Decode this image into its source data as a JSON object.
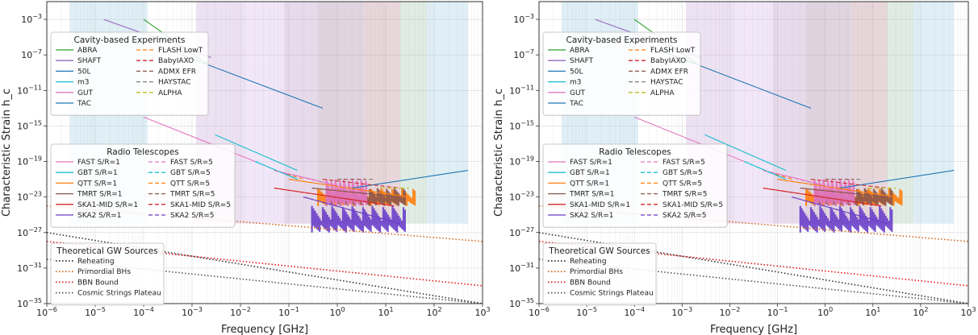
{
  "chart_data": {
    "type": "line",
    "figure_title": "",
    "panels": [
      {
        "id": "left",
        "title": ""
      },
      {
        "id": "right",
        "title": ""
      }
    ],
    "xlabel": "Frequency [GHz]",
    "ylabel": "Characteristic Strain h_c",
    "xscale": "log",
    "yscale": "log",
    "xlim": [
      1e-06,
      1000.0
    ],
    "ylim": [
      1e-35,
      0.1
    ],
    "x_ticks": [
      {
        "exp": -6,
        "label": "10",
        "sup": "−6"
      },
      {
        "exp": -5,
        "label": "10",
        "sup": "−5"
      },
      {
        "exp": -4,
        "label": "10",
        "sup": "−4"
      },
      {
        "exp": -3,
        "label": "10",
        "sup": "−3"
      },
      {
        "exp": -2,
        "label": "10",
        "sup": "−2"
      },
      {
        "exp": -1,
        "label": "10",
        "sup": "−1"
      },
      {
        "exp": 0,
        "label": "10",
        "sup": "0"
      },
      {
        "exp": 1,
        "label": "10",
        "sup": "1"
      },
      {
        "exp": 2,
        "label": "10",
        "sup": "2"
      },
      {
        "exp": 3,
        "label": "10",
        "sup": "3"
      }
    ],
    "y_ticks": [
      {
        "exp": -3,
        "label": "10",
        "sup": "−3"
      },
      {
        "exp": -7,
        "label": "10",
        "sup": "−7"
      },
      {
        "exp": -11,
        "label": "10",
        "sup": "−11"
      },
      {
        "exp": -15,
        "label": "10",
        "sup": "−15"
      },
      {
        "exp": -19,
        "label": "10",
        "sup": "−19"
      },
      {
        "exp": -23,
        "label": "10",
        "sup": "−23"
      },
      {
        "exp": -27,
        "label": "10",
        "sup": "−27"
      },
      {
        "exp": -31,
        "label": "10",
        "sup": "−31"
      },
      {
        "exp": -35,
        "label": "10",
        "sup": "−35"
      }
    ],
    "grid": true,
    "shaded_bands": [
      {
        "name": "band-1",
        "x": [
          3e-06,
          0.00012
        ],
        "color": "#9ecae1"
      },
      {
        "name": "band-2",
        "x": [
          0.0012,
          0.013
        ],
        "color": "#c6a4d8"
      },
      {
        "name": "band-3",
        "x": [
          0.013,
          0.08
        ],
        "color": "#d6b3e8"
      },
      {
        "name": "band-4",
        "x": [
          0.08,
          0.4
        ],
        "color": "#b38fc2"
      },
      {
        "name": "band-5",
        "x": [
          0.4,
          3.5
        ],
        "color": "#a07aa0"
      },
      {
        "name": "band-6",
        "x": [
          3.5,
          20
        ],
        "color": "#b5838f"
      },
      {
        "name": "band-7",
        "x": [
          20,
          70
        ],
        "color": "#9fc3a8"
      },
      {
        "name": "band-8",
        "x": [
          70,
          500
        ],
        "color": "#9ecae1"
      }
    ],
    "series": [
      {
        "name": "ABRA",
        "style": "solid",
        "color": "#2ca02c",
        "points": [
          [
            0.0001,
            0.001
          ],
          [
            0.002,
            1e-08
          ]
        ]
      },
      {
        "name": "SHAFT",
        "style": "solid",
        "color": "#9467bd",
        "points": [
          [
            1.5e-05,
            0.001
          ],
          [
            0.0025,
            5e-08
          ]
        ]
      },
      {
        "name": "50L",
        "style": "solid",
        "color": "#1f77b4",
        "points": [
          [
            0.0002,
            1e-06
          ],
          [
            0.5,
            1e-13
          ]
        ]
      },
      {
        "name": "m3",
        "style": "solid",
        "color": "#17becf",
        "points": [
          [
            0.003,
            1e-16
          ],
          [
            0.15,
            1e-20
          ]
        ]
      },
      {
        "name": "GUT",
        "style": "solid",
        "color": "#e377c2",
        "points": [
          [
            0.0001,
            1e-14
          ],
          [
            0.02,
            1e-19
          ]
        ]
      },
      {
        "name": "TAC",
        "style": "solid",
        "color": "#1f77b4",
        "points": [
          [
            2,
            1e-22
          ],
          [
            500,
            1e-20
          ]
        ]
      },
      {
        "name": "FLASH LowT",
        "style": "dashed",
        "color": "#ff7f0e",
        "points": [
          [
            0.05,
            1e-20
          ],
          [
            0.2,
            1e-21
          ]
        ]
      },
      {
        "name": "BabyIAXO",
        "style": "dashed",
        "color": "#d62728",
        "points": [
          [
            0.5,
            1e-21
          ],
          [
            20,
            1e-22
          ]
        ]
      },
      {
        "name": "ADMX EFR",
        "style": "dashed",
        "color": "#8c564b",
        "points": [
          [
            1,
            1e-21
          ],
          [
            4,
            1e-21
          ]
        ]
      },
      {
        "name": "HAYSTAC",
        "style": "dashed",
        "color": "#7f7f7f",
        "points": [
          [
            4.5,
            1e-21
          ],
          [
            5.5,
            1e-21
          ]
        ]
      },
      {
        "name": "ALPHA",
        "style": "dashed",
        "color": "#bcbd22",
        "points": [
          [
            8,
            1e-22
          ],
          [
            30,
            1e-22
          ]
        ]
      },
      {
        "name": "FAST S/R=1",
        "style": "solid",
        "color": "#e377c2",
        "points": [
          [
            0.05,
            1e-20
          ],
          [
            0.3,
            1e-21
          ],
          [
            1.5,
            1e-22
          ]
        ]
      },
      {
        "name": "GBT S/R=1",
        "style": "solid",
        "color": "#17becf",
        "points": [
          [
            0.02,
            1e-19
          ],
          [
            0.15,
            1e-21
          ]
        ]
      },
      {
        "name": "QTT S/R=1",
        "style": "solid",
        "color": "#ff7f0e",
        "points": [
          [
            0.1,
            1e-21
          ],
          [
            30,
            1e-23
          ]
        ]
      },
      {
        "name": "TMRT S/R=1",
        "style": "solid",
        "color": "#8c564b",
        "points": [
          [
            0.3,
            1e-22
          ],
          [
            20,
            1e-23
          ]
        ]
      },
      {
        "name": "SKA1-MID S/R=1",
        "style": "solid",
        "color": "#d62728",
        "points": [
          [
            0.05,
            1e-22
          ],
          [
            15,
            1e-24
          ]
        ]
      },
      {
        "name": "SKA2 S/R=1",
        "style": "solid",
        "color": "#6a3fc9",
        "points": [
          [
            0.2,
            1e-23
          ],
          [
            20,
            1e-26
          ]
        ]
      },
      {
        "name": "FAST S/R=5",
        "style": "dashed",
        "color": "#e377c2",
        "points": [
          [
            0.05,
            1e-20
          ],
          [
            1.5,
            1e-22
          ]
        ]
      },
      {
        "name": "GBT S/R=5",
        "style": "dashed",
        "color": "#17becf",
        "points": [
          [
            0.02,
            1e-19
          ],
          [
            0.15,
            1e-21
          ]
        ]
      },
      {
        "name": "QTT S/R=5",
        "style": "dashed",
        "color": "#ff7f0e",
        "points": [
          [
            0.1,
            1e-21
          ],
          [
            30,
            1e-23
          ]
        ]
      },
      {
        "name": "TMRT S/R=5",
        "style": "dashed",
        "color": "#8c564b",
        "points": [
          [
            0.3,
            1e-22
          ],
          [
            20,
            1e-23
          ]
        ]
      },
      {
        "name": "SKA1-MID S/R=5",
        "style": "dashed",
        "color": "#d62728",
        "points": [
          [
            0.05,
            1e-22
          ],
          [
            15,
            1e-24
          ]
        ]
      },
      {
        "name": "SKA2 S/R=5",
        "style": "dashed",
        "color": "#6a3fc9",
        "points": [
          [
            0.2,
            1e-23
          ],
          [
            20,
            1e-26
          ]
        ]
      },
      {
        "name": "Reheating",
        "style": "dotted",
        "color": "#333333",
        "points": [
          [
            1e-06,
            1e-27
          ],
          [
            1000,
            1e-35
          ]
        ]
      },
      {
        "name": "Primordial BHs",
        "style": "dotted",
        "color": "#d2691e",
        "points": [
          [
            1e-06,
            1e-24
          ],
          [
            1000,
            1e-28
          ]
        ]
      },
      {
        "name": "BBN Bound",
        "style": "dotted",
        "color": "#e31a1c",
        "points": [
          [
            1e-06,
            1e-28
          ],
          [
            1000,
            1e-33
          ]
        ]
      },
      {
        "name": "Cosmic Strings Plateau",
        "style": "dotted",
        "color": "#555555",
        "points": [
          [
            1e-06,
            1e-30
          ],
          [
            1000,
            1e-35
          ]
        ]
      }
    ],
    "noise_regions": [
      {
        "name": "QTT S/R=1",
        "x": [
          0.4,
          40
        ],
        "y": [
          1e-24,
          1e-22
        ],
        "color": "#ff7f0e"
      },
      {
        "name": "TMRT S/R=1",
        "x": [
          0.6,
          25
        ],
        "y": [
          1e-24,
          1e-22
        ],
        "color": "#8c564b"
      },
      {
        "name": "SKA2 S/R=1",
        "x": [
          0.3,
          25
        ],
        "y": [
          1e-27,
          1e-24
        ],
        "color": "#6a3fc9"
      },
      {
        "name": "FAST S/R=1",
        "x": [
          0.6,
          4
        ],
        "y": [
          1e-24,
          1e-21
        ],
        "color": "#e377c2"
      }
    ],
    "legends": [
      {
        "title": "Cavity-based Experiments",
        "columns": [
          [
            "ABRA",
            "SHAFT",
            "50L",
            "m3",
            "GUT",
            "TAC"
          ],
          [
            "FLASH LowT",
            "BabyIAXO",
            "ADMX EFR",
            "HAYSTAC",
            "ALPHA"
          ]
        ]
      },
      {
        "title": "Radio Telescopes",
        "columns": [
          [
            "FAST S/R=1",
            "GBT S/R=1",
            "QTT S/R=1",
            "TMRT S/R=1",
            "SKA1-MID S/R=1",
            "SKA2 S/R=1"
          ],
          [
            "FAST S/R=5",
            "GBT S/R=5",
            "QTT S/R=5",
            "TMRT S/R=5",
            "SKA1-MID S/R=5",
            "SKA2 S/R=5"
          ]
        ]
      },
      {
        "title": "Theoretical GW Sources",
        "columns": [
          [
            "Reheating",
            "Primordial BHs",
            "BBN Bound",
            "Cosmic Strings Plateau"
          ]
        ]
      }
    ]
  }
}
